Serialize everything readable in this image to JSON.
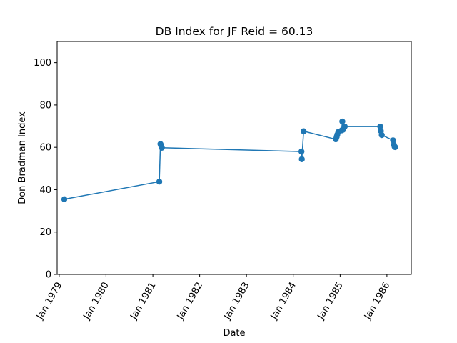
{
  "chart_data": {
    "type": "line",
    "title": "DB Index for JF Reid = 60.13",
    "xlabel": "Date",
    "ylabel": "Don Bradman Index",
    "ylim": [
      0,
      110
    ],
    "yticks": [
      0,
      20,
      40,
      60,
      80,
      100
    ],
    "xlim": [
      "1978-12-16",
      "1986-07-10"
    ],
    "xticks": [
      {
        "date": "1979-01-01",
        "label": "Jan 1979"
      },
      {
        "date": "1980-01-01",
        "label": "Jan 1980"
      },
      {
        "date": "1981-01-01",
        "label": "Jan 1981"
      },
      {
        "date": "1982-01-01",
        "label": "Jan 1982"
      },
      {
        "date": "1983-01-01",
        "label": "Jan 1983"
      },
      {
        "date": "1984-01-01",
        "label": "Jan 1984"
      },
      {
        "date": "1985-01-01",
        "label": "Jan 1985"
      },
      {
        "date": "1986-01-01",
        "label": "Jan 1986"
      }
    ],
    "grid": false,
    "legend": "none",
    "line_color": "#1f77b4",
    "points": [
      {
        "x": "1979-02-10",
        "y": 35.5
      },
      {
        "x": "1981-02-20",
        "y": 43.8
      },
      {
        "x": "1981-03-01",
        "y": 61.6
      },
      {
        "x": "1981-03-05",
        "y": 61.0
      },
      {
        "x": "1981-03-12",
        "y": 59.8
      },
      {
        "x": "1984-03-05",
        "y": 58.0
      },
      {
        "x": "1984-03-08",
        "y": 54.4
      },
      {
        "x": "1984-03-22",
        "y": 67.6
      },
      {
        "x": "1984-11-28",
        "y": 63.8
      },
      {
        "x": "1984-12-05",
        "y": 65.0
      },
      {
        "x": "1984-12-10",
        "y": 66.0
      },
      {
        "x": "1984-12-18",
        "y": 67.3
      },
      {
        "x": "1985-01-13",
        "y": 68.0
      },
      {
        "x": "1985-01-18",
        "y": 72.2
      },
      {
        "x": "1985-01-24",
        "y": 68.3
      },
      {
        "x": "1985-02-06",
        "y": 69.8
      },
      {
        "x": "1985-11-10",
        "y": 69.8
      },
      {
        "x": "1985-11-15",
        "y": 67.7
      },
      {
        "x": "1985-11-22",
        "y": 65.8
      },
      {
        "x": "1986-02-18",
        "y": 63.3
      },
      {
        "x": "1986-02-24",
        "y": 61.2
      },
      {
        "x": "1986-03-02",
        "y": 60.3
      },
      {
        "x": "1986-03-06",
        "y": 60.1
      }
    ]
  }
}
